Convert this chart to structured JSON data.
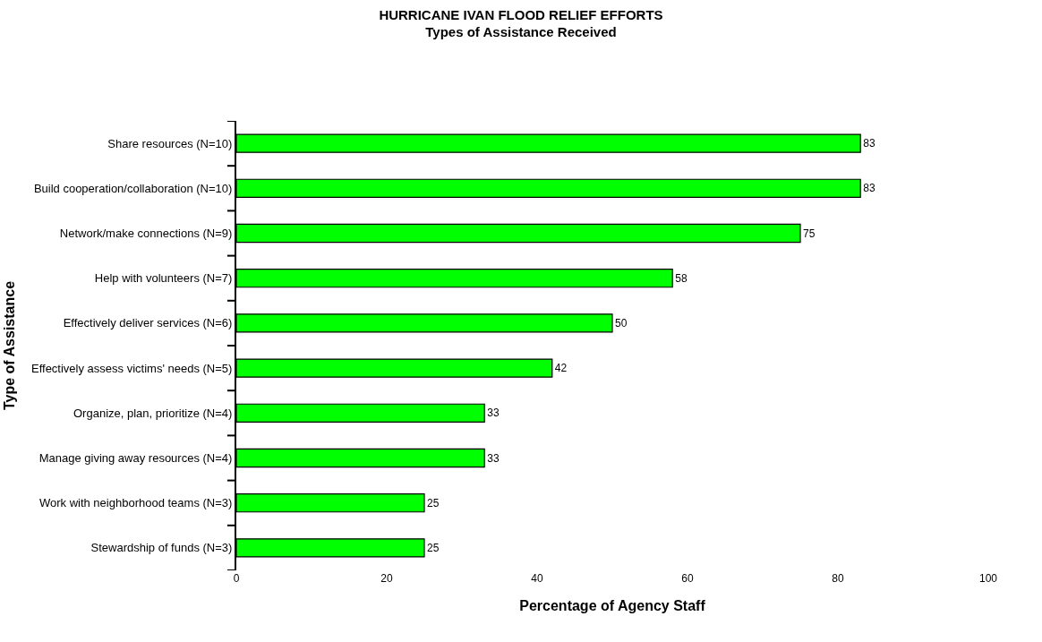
{
  "chart_data": {
    "type": "bar",
    "orientation": "horizontal",
    "title": "HURRICANE IVAN FLOOD RELIEF EFFORTS",
    "subtitle": "Types of Assistance Received",
    "xlabel": "Percentage of Agency Staff",
    "ylabel": "Type of Assistance",
    "categories": [
      "Share resources (N=10)",
      "Build cooperation/collaboration (N=10)",
      "Network/make connections (N=9)",
      "Help with volunteers (N=7)",
      "Effectively deliver services (N=6)",
      "Effectively assess victims' needs (N=5)",
      "Organize, plan, prioritize (N=4)",
      "Manage giving away resources (N=4)",
      "Work with neighborhood teams (N=3)",
      "Stewardship of funds (N=3)"
    ],
    "values": [
      83,
      83,
      75,
      58,
      50,
      42,
      33,
      33,
      25,
      25
    ],
    "color": "#00ff00",
    "xlim": [
      0,
      100
    ],
    "xticks": [
      0,
      20,
      40,
      60,
      80,
      100
    ],
    "data_labels": true
  }
}
